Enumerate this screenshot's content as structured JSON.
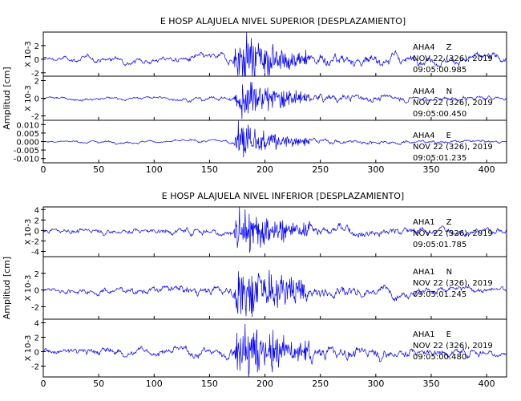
{
  "colors": {
    "trace": "#0000ff",
    "axes": "#000000",
    "text": "#000000"
  },
  "chart_data": [
    {
      "type": "line",
      "title": "E HOSP ALAJUELA NIVEL SUPERIOR [DESPLAZAMIENTO]",
      "ylabel": "Amplitud [cm]",
      "xlim": [
        0,
        418
      ],
      "x_ticks": [
        0,
        50,
        100,
        150,
        200,
        250,
        300,
        350,
        400
      ],
      "panels": [
        {
          "station": "AHA4",
          "component": "Z",
          "date": "NOV 22 (326), 2019",
          "time": "09:05:00.985",
          "scale_label": "X 10-3",
          "ylim": [
            -2.5,
            4
          ],
          "y_ticks": [
            -2,
            0,
            2
          ],
          "trace_envelope": {
            "x": [
              0,
              50,
              100,
              150,
              172,
              176,
              185,
              200,
              230,
              300,
              350,
              418
            ],
            "amp": [
              0.4,
              0.5,
              0.5,
              0.6,
              0.7,
              3.6,
              3.0,
              2.0,
              1.2,
              0.9,
              0.7,
              0.6
            ]
          }
        },
        {
          "station": "AHA4",
          "component": "N",
          "date": "NOV 22 (326), 2019",
          "time": "09:05:00.450",
          "scale_label": "X 10-3",
          "ylim": [
            -2.5,
            2.5
          ],
          "y_ticks": [
            -2,
            0,
            2
          ],
          "trace_envelope": {
            "x": [
              0,
              50,
              100,
              150,
              172,
              176,
              185,
              200,
              230,
              300,
              350,
              418
            ],
            "amp": [
              0.15,
              0.2,
              0.2,
              0.25,
              0.3,
              2.1,
              2.0,
              1.3,
              0.7,
              0.4,
              0.3,
              0.25
            ]
          }
        },
        {
          "station": "AHA4",
          "component": "E",
          "date": "NOV 22 (326), 2019",
          "time": "09:05:01.235",
          "scale_label": "",
          "ylim": [
            -0.0125,
            0.0125
          ],
          "y_ticks": [
            -0.01,
            -0.005,
            0,
            0.005,
            0.01
          ],
          "y_tick_labels": [
            "-0.010",
            "-0.005",
            "0.000",
            "0.005",
            "0.010"
          ],
          "trace_envelope": {
            "x": [
              0,
              50,
              100,
              150,
              172,
              176,
              185,
              200,
              230,
              300,
              350,
              418
            ],
            "amp": [
              0.0006,
              0.0008,
              0.0008,
              0.001,
              0.0012,
              0.011,
              0.009,
              0.005,
              0.002,
              0.0013,
              0.001,
              0.0009
            ]
          }
        }
      ]
    },
    {
      "type": "line",
      "title": "E HOSP ALAJUELA NIVEL INFERIOR [DESPLAZAMIENTO]",
      "ylabel": "Amplitud [cm]",
      "xlim": [
        0,
        418
      ],
      "x_ticks": [
        0,
        50,
        100,
        150,
        200,
        250,
        300,
        350,
        400
      ],
      "panels": [
        {
          "station": "AHA1",
          "component": "Z",
          "date": "NOV 22 (326), 2019",
          "time": "09:05:01.785",
          "scale_label": "X 10-3",
          "ylim": [
            -5,
            4.5
          ],
          "y_ticks": [
            -4,
            -2,
            0,
            2,
            4
          ],
          "trace_envelope": {
            "x": [
              0,
              50,
              100,
              150,
              172,
              176,
              185,
              200,
              230,
              300,
              350,
              418
            ],
            "amp": [
              0.5,
              0.6,
              0.7,
              0.8,
              1.0,
              4.2,
              3.5,
              2.2,
              1.4,
              1.0,
              0.8,
              0.7
            ]
          }
        },
        {
          "station": "AHA1",
          "component": "N",
          "date": "NOV 22 (326), 2019",
          "time": "09:05:01.245",
          "scale_label": "X 10-3",
          "ylim": [
            -3.5,
            4
          ],
          "y_ticks": [
            -2,
            0,
            2
          ],
          "trace_envelope": {
            "x": [
              0,
              50,
              100,
              150,
              172,
              176,
              185,
              200,
              230,
              300,
              350,
              418
            ],
            "amp": [
              0.35,
              0.45,
              0.5,
              0.6,
              0.8,
              3.3,
              3.0,
              2.0,
              1.2,
              0.7,
              0.5,
              0.4
            ]
          }
        },
        {
          "station": "AHA1",
          "component": "E",
          "date": "NOV 22 (326), 2019",
          "time": "09:05:00.480",
          "scale_label": "X 10-3",
          "ylim": [
            -3.5,
            4.5
          ],
          "y_ticks": [
            -2,
            0,
            2,
            4
          ],
          "trace_envelope": {
            "x": [
              0,
              50,
              100,
              150,
              172,
              176,
              185,
              200,
              230,
              300,
              350,
              418
            ],
            "amp": [
              0.5,
              0.6,
              0.6,
              0.7,
              0.9,
              3.6,
              3.2,
              2.2,
              1.3,
              0.9,
              0.7,
              0.6
            ]
          }
        }
      ]
    }
  ]
}
